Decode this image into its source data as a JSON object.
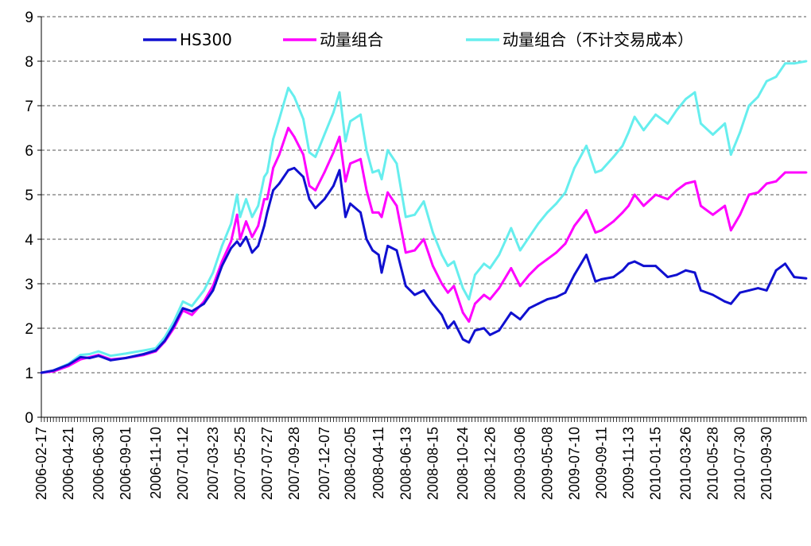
{
  "chart_data": {
    "type": "line",
    "title": "",
    "xlabel": "",
    "ylabel": "",
    "ylim": [
      0,
      9
    ],
    "yticks": [
      0,
      1,
      2,
      3,
      4,
      5,
      6,
      7,
      8,
      9
    ],
    "grid": "horizontal dashed",
    "legend_position": "top",
    "x_tick_labels": [
      "2006-02-17",
      "2006-04-21",
      "2006-06-30",
      "2006-09-01",
      "2006-11-10",
      "2007-01-12",
      "2007-03-23",
      "2007-05-25",
      "2007-07-27",
      "2007-09-28",
      "2007-12-07",
      "2008-02-05",
      "2008-04-11",
      "2008-06-13",
      "2008-08-15",
      "2008-10-24",
      "2008-12-26",
      "2009-03-06",
      "2009-05-08",
      "2009-07-10",
      "2009-09-11",
      "2009-11-13",
      "2010-01-15",
      "2010-03-26",
      "2010-05-28",
      "2010-07-30",
      "2010-09-30"
    ],
    "x_last": "2010-12-31",
    "series": [
      {
        "name": "HS300",
        "color": "#1010d0",
        "points": [
          [
            "2006-02-17",
            1.0
          ],
          [
            "2006-03-17",
            1.05
          ],
          [
            "2006-04-21",
            1.18
          ],
          [
            "2006-05-19",
            1.35
          ],
          [
            "2006-06-09",
            1.33
          ],
          [
            "2006-06-30",
            1.38
          ],
          [
            "2006-07-28",
            1.28
          ],
          [
            "2006-09-01",
            1.33
          ],
          [
            "2006-10-13",
            1.42
          ],
          [
            "2006-11-10",
            1.5
          ],
          [
            "2006-12-01",
            1.72
          ],
          [
            "2006-12-22",
            2.05
          ],
          [
            "2007-01-12",
            2.45
          ],
          [
            "2007-02-02",
            2.38
          ],
          [
            "2007-03-02",
            2.55
          ],
          [
            "2007-03-23",
            2.85
          ],
          [
            "2007-04-13",
            3.4
          ],
          [
            "2007-05-04",
            3.8
          ],
          [
            "2007-05-18",
            3.95
          ],
          [
            "2007-05-25",
            3.85
          ],
          [
            "2007-06-08",
            4.05
          ],
          [
            "2007-06-22",
            3.7
          ],
          [
            "2007-07-06",
            3.85
          ],
          [
            "2007-07-20",
            4.3
          ],
          [
            "2007-07-27",
            4.6
          ],
          [
            "2007-08-10",
            5.1
          ],
          [
            "2007-08-24",
            5.25
          ],
          [
            "2007-09-14",
            5.55
          ],
          [
            "2007-09-28",
            5.6
          ],
          [
            "2007-10-19",
            5.4
          ],
          [
            "2007-11-02",
            4.9
          ],
          [
            "2007-11-16",
            4.7
          ],
          [
            "2007-12-07",
            4.9
          ],
          [
            "2007-12-28",
            5.2
          ],
          [
            "2008-01-11",
            5.55
          ],
          [
            "2008-01-25",
            4.5
          ],
          [
            "2008-02-05",
            4.8
          ],
          [
            "2008-02-29",
            4.6
          ],
          [
            "2008-03-14",
            4.0
          ],
          [
            "2008-03-28",
            3.75
          ],
          [
            "2008-04-11",
            3.65
          ],
          [
            "2008-04-18",
            3.25
          ],
          [
            "2008-05-02",
            3.85
          ],
          [
            "2008-05-23",
            3.75
          ],
          [
            "2008-06-13",
            2.95
          ],
          [
            "2008-07-04",
            2.75
          ],
          [
            "2008-07-25",
            2.85
          ],
          [
            "2008-08-15",
            2.55
          ],
          [
            "2008-09-05",
            2.3
          ],
          [
            "2008-09-19",
            2.0
          ],
          [
            "2008-10-03",
            2.15
          ],
          [
            "2008-10-24",
            1.75
          ],
          [
            "2008-11-07",
            1.68
          ],
          [
            "2008-11-21",
            1.95
          ],
          [
            "2008-12-12",
            2.0
          ],
          [
            "2008-12-26",
            1.85
          ],
          [
            "2009-01-16",
            1.95
          ],
          [
            "2009-02-13",
            2.35
          ],
          [
            "2009-03-06",
            2.2
          ],
          [
            "2009-03-27",
            2.45
          ],
          [
            "2009-04-17",
            2.55
          ],
          [
            "2009-05-08",
            2.65
          ],
          [
            "2009-05-29",
            2.7
          ],
          [
            "2009-06-19",
            2.8
          ],
          [
            "2009-07-10",
            3.2
          ],
          [
            "2009-08-07",
            3.65
          ],
          [
            "2009-08-28",
            3.05
          ],
          [
            "2009-09-11",
            3.1
          ],
          [
            "2009-10-09",
            3.15
          ],
          [
            "2009-10-30",
            3.3
          ],
          [
            "2009-11-13",
            3.45
          ],
          [
            "2009-11-27",
            3.5
          ],
          [
            "2009-12-18",
            3.4
          ],
          [
            "2010-01-15",
            3.4
          ],
          [
            "2010-02-12",
            3.15
          ],
          [
            "2010-03-05",
            3.2
          ],
          [
            "2010-03-26",
            3.3
          ],
          [
            "2010-04-16",
            3.25
          ],
          [
            "2010-04-30",
            2.85
          ],
          [
            "2010-05-28",
            2.75
          ],
          [
            "2010-06-25",
            2.6
          ],
          [
            "2010-07-09",
            2.55
          ],
          [
            "2010-07-30",
            2.8
          ],
          [
            "2010-08-20",
            2.85
          ],
          [
            "2010-09-10",
            2.9
          ],
          [
            "2010-09-30",
            2.85
          ],
          [
            "2010-10-22",
            3.3
          ],
          [
            "2010-11-12",
            3.45
          ],
          [
            "2010-12-03",
            3.15
          ],
          [
            "2010-12-31",
            3.12
          ]
        ]
      },
      {
        "name": "动量组合",
        "color": "#ff00ff",
        "points": [
          [
            "2006-02-17",
            1.0
          ],
          [
            "2006-03-17",
            1.03
          ],
          [
            "2006-04-21",
            1.15
          ],
          [
            "2006-05-19",
            1.3
          ],
          [
            "2006-06-09",
            1.35
          ],
          [
            "2006-06-30",
            1.4
          ],
          [
            "2006-07-28",
            1.3
          ],
          [
            "2006-09-01",
            1.33
          ],
          [
            "2006-10-13",
            1.4
          ],
          [
            "2006-11-10",
            1.48
          ],
          [
            "2006-12-01",
            1.7
          ],
          [
            "2006-12-22",
            2.0
          ],
          [
            "2007-01-12",
            2.4
          ],
          [
            "2007-02-02",
            2.3
          ],
          [
            "2007-03-02",
            2.6
          ],
          [
            "2007-03-23",
            2.95
          ],
          [
            "2007-04-13",
            3.5
          ],
          [
            "2007-05-04",
            3.95
          ],
          [
            "2007-05-18",
            4.55
          ],
          [
            "2007-05-25",
            4.0
          ],
          [
            "2007-06-08",
            4.4
          ],
          [
            "2007-06-22",
            4.05
          ],
          [
            "2007-07-06",
            4.3
          ],
          [
            "2007-07-20",
            4.9
          ],
          [
            "2007-07-27",
            4.9
          ],
          [
            "2007-08-10",
            5.6
          ],
          [
            "2007-08-24",
            5.9
          ],
          [
            "2007-09-14",
            6.5
          ],
          [
            "2007-09-28",
            6.3
          ],
          [
            "2007-10-19",
            5.9
          ],
          [
            "2007-11-02",
            5.2
          ],
          [
            "2007-11-16",
            5.1
          ],
          [
            "2007-12-07",
            5.5
          ],
          [
            "2007-12-28",
            5.95
          ],
          [
            "2008-01-11",
            6.3
          ],
          [
            "2008-01-25",
            5.3
          ],
          [
            "2008-02-05",
            5.7
          ],
          [
            "2008-02-29",
            5.8
          ],
          [
            "2008-03-14",
            5.1
          ],
          [
            "2008-03-28",
            4.6
          ],
          [
            "2008-04-11",
            4.6
          ],
          [
            "2008-04-18",
            4.5
          ],
          [
            "2008-05-02",
            5.05
          ],
          [
            "2008-05-23",
            4.75
          ],
          [
            "2008-06-13",
            3.7
          ],
          [
            "2008-07-04",
            3.75
          ],
          [
            "2008-07-25",
            4.0
          ],
          [
            "2008-08-15",
            3.4
          ],
          [
            "2008-09-05",
            3.0
          ],
          [
            "2008-09-19",
            2.8
          ],
          [
            "2008-10-03",
            2.95
          ],
          [
            "2008-10-24",
            2.35
          ],
          [
            "2008-11-07",
            2.15
          ],
          [
            "2008-11-21",
            2.55
          ],
          [
            "2008-12-12",
            2.75
          ],
          [
            "2008-12-26",
            2.65
          ],
          [
            "2009-01-16",
            2.9
          ],
          [
            "2009-02-13",
            3.35
          ],
          [
            "2009-03-06",
            2.95
          ],
          [
            "2009-03-27",
            3.2
          ],
          [
            "2009-04-17",
            3.4
          ],
          [
            "2009-05-08",
            3.55
          ],
          [
            "2009-05-29",
            3.7
          ],
          [
            "2009-06-19",
            3.9
          ],
          [
            "2009-07-10",
            4.3
          ],
          [
            "2009-08-07",
            4.65
          ],
          [
            "2009-08-28",
            4.15
          ],
          [
            "2009-09-11",
            4.2
          ],
          [
            "2009-10-09",
            4.4
          ],
          [
            "2009-10-30",
            4.6
          ],
          [
            "2009-11-13",
            4.75
          ],
          [
            "2009-11-27",
            5.0
          ],
          [
            "2009-12-18",
            4.75
          ],
          [
            "2010-01-15",
            5.0
          ],
          [
            "2010-02-12",
            4.9
          ],
          [
            "2010-03-05",
            5.1
          ],
          [
            "2010-03-26",
            5.25
          ],
          [
            "2010-04-16",
            5.3
          ],
          [
            "2010-04-30",
            4.75
          ],
          [
            "2010-05-28",
            4.55
          ],
          [
            "2010-06-25",
            4.75
          ],
          [
            "2010-07-09",
            4.2
          ],
          [
            "2010-07-30",
            4.55
          ],
          [
            "2010-08-20",
            5.0
          ],
          [
            "2010-09-10",
            5.05
          ],
          [
            "2010-09-30",
            5.25
          ],
          [
            "2010-10-22",
            5.3
          ],
          [
            "2010-11-12",
            5.5
          ],
          [
            "2010-12-03",
            5.5
          ],
          [
            "2010-12-31",
            5.5
          ]
        ]
      },
      {
        "name": "动量组合（不计交易成本）",
        "color": "#66eeee",
        "points": [
          [
            "2006-02-17",
            1.0
          ],
          [
            "2006-03-17",
            1.05
          ],
          [
            "2006-04-21",
            1.2
          ],
          [
            "2006-05-19",
            1.4
          ],
          [
            "2006-06-09",
            1.42
          ],
          [
            "2006-06-30",
            1.48
          ],
          [
            "2006-07-28",
            1.38
          ],
          [
            "2006-09-01",
            1.43
          ],
          [
            "2006-10-13",
            1.5
          ],
          [
            "2006-11-10",
            1.55
          ],
          [
            "2006-12-01",
            1.8
          ],
          [
            "2006-12-22",
            2.15
          ],
          [
            "2007-01-12",
            2.6
          ],
          [
            "2007-02-02",
            2.5
          ],
          [
            "2007-03-02",
            2.85
          ],
          [
            "2007-03-23",
            3.25
          ],
          [
            "2007-04-13",
            3.85
          ],
          [
            "2007-05-04",
            4.35
          ],
          [
            "2007-05-18",
            5.0
          ],
          [
            "2007-05-25",
            4.5
          ],
          [
            "2007-06-08",
            4.9
          ],
          [
            "2007-06-22",
            4.5
          ],
          [
            "2007-07-06",
            4.75
          ],
          [
            "2007-07-20",
            5.4
          ],
          [
            "2007-07-27",
            5.5
          ],
          [
            "2007-08-10",
            6.25
          ],
          [
            "2007-08-24",
            6.7
          ],
          [
            "2007-09-14",
            7.4
          ],
          [
            "2007-09-28",
            7.2
          ],
          [
            "2007-10-19",
            6.7
          ],
          [
            "2007-11-02",
            5.95
          ],
          [
            "2007-11-16",
            5.85
          ],
          [
            "2007-12-07",
            6.35
          ],
          [
            "2007-12-28",
            6.85
          ],
          [
            "2008-01-11",
            7.3
          ],
          [
            "2008-01-25",
            6.2
          ],
          [
            "2008-02-05",
            6.65
          ],
          [
            "2008-02-29",
            6.8
          ],
          [
            "2008-03-14",
            6.0
          ],
          [
            "2008-03-28",
            5.5
          ],
          [
            "2008-04-11",
            5.55
          ],
          [
            "2008-04-18",
            5.35
          ],
          [
            "2008-05-02",
            6.0
          ],
          [
            "2008-05-23",
            5.7
          ],
          [
            "2008-06-13",
            4.5
          ],
          [
            "2008-07-04",
            4.55
          ],
          [
            "2008-07-25",
            4.85
          ],
          [
            "2008-08-15",
            4.15
          ],
          [
            "2008-09-05",
            3.65
          ],
          [
            "2008-09-19",
            3.4
          ],
          [
            "2008-10-03",
            3.5
          ],
          [
            "2008-10-24",
            2.9
          ],
          [
            "2008-11-07",
            2.65
          ],
          [
            "2008-11-21",
            3.2
          ],
          [
            "2008-12-12",
            3.45
          ],
          [
            "2008-12-26",
            3.35
          ],
          [
            "2009-01-16",
            3.65
          ],
          [
            "2009-02-13",
            4.25
          ],
          [
            "2009-03-06",
            3.75
          ],
          [
            "2009-03-27",
            4.05
          ],
          [
            "2009-04-17",
            4.35
          ],
          [
            "2009-05-08",
            4.6
          ],
          [
            "2009-05-29",
            4.8
          ],
          [
            "2009-06-19",
            5.05
          ],
          [
            "2009-07-10",
            5.6
          ],
          [
            "2009-08-07",
            6.1
          ],
          [
            "2009-08-28",
            5.5
          ],
          [
            "2009-09-11",
            5.55
          ],
          [
            "2009-10-09",
            5.85
          ],
          [
            "2009-10-30",
            6.1
          ],
          [
            "2009-11-13",
            6.4
          ],
          [
            "2009-11-27",
            6.75
          ],
          [
            "2009-12-18",
            6.45
          ],
          [
            "2010-01-15",
            6.8
          ],
          [
            "2010-02-12",
            6.6
          ],
          [
            "2010-03-05",
            6.9
          ],
          [
            "2010-03-26",
            7.15
          ],
          [
            "2010-04-16",
            7.3
          ],
          [
            "2010-04-30",
            6.6
          ],
          [
            "2010-05-28",
            6.35
          ],
          [
            "2010-06-25",
            6.6
          ],
          [
            "2010-07-09",
            5.9
          ],
          [
            "2010-07-30",
            6.4
          ],
          [
            "2010-08-20",
            7.0
          ],
          [
            "2010-09-10",
            7.2
          ],
          [
            "2010-09-30",
            7.55
          ],
          [
            "2010-10-22",
            7.65
          ],
          [
            "2010-11-12",
            7.95
          ],
          [
            "2010-12-03",
            7.95
          ],
          [
            "2010-12-31",
            8.0
          ]
        ]
      }
    ]
  }
}
